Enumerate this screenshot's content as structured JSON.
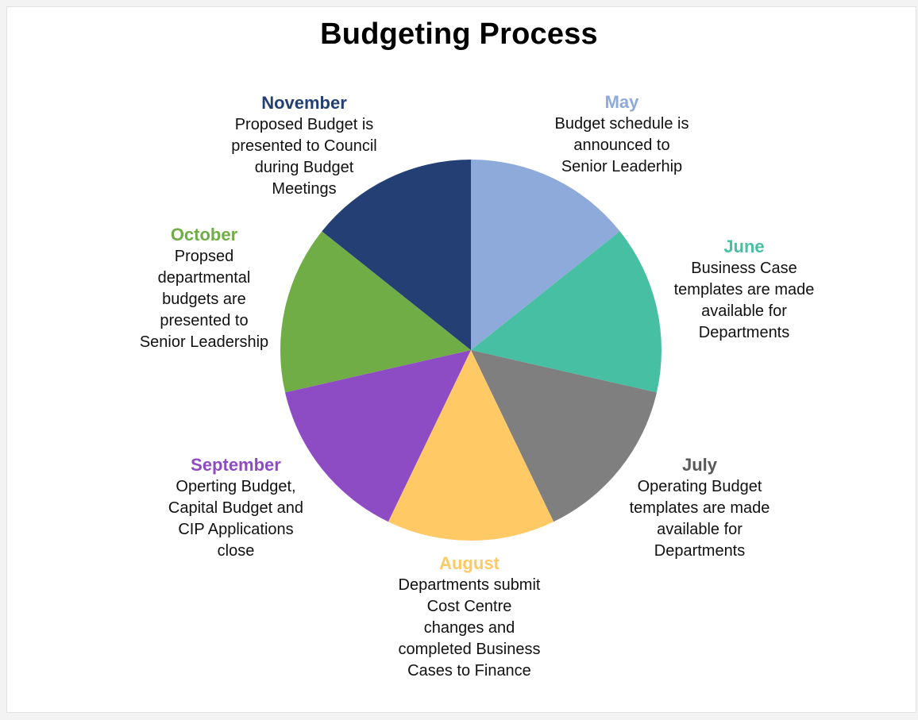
{
  "title": "Budgeting Process",
  "segments": [
    {
      "month": "May",
      "color": "#8eaadb",
      "lines": [
        "Budget schedule is",
        "announced to",
        "Senior Leaderhip"
      ]
    },
    {
      "month": "June",
      "color": "#47bfa2",
      "lines": [
        "Business Case",
        "templates  are made",
        "available  for",
        "Departments"
      ]
    },
    {
      "month": "July",
      "color": "#7f7f7f",
      "lines": [
        "Operating Budget",
        "templates  are made",
        "available  for",
        "Departments"
      ]
    },
    {
      "month": "August",
      "color": "#ffc966",
      "lines": [
        "Departments  submit",
        "Cost Centre",
        "changes and",
        "completed  Business",
        "Cases to Finance"
      ]
    },
    {
      "month": "September",
      "color": "#8e4cc4",
      "lines": [
        "Operting Budget,",
        "Capital Budget and",
        "CIP Applications",
        "close"
      ]
    },
    {
      "month": "October",
      "color": "#70ad47",
      "lines": [
        "Propsed",
        "departmental",
        "budgets are",
        "presented to",
        "Senior Leadership"
      ]
    },
    {
      "month": "November",
      "color": "#243f73",
      "lines": [
        "Proposed Budget is",
        "presented to Council",
        "during Budget",
        "Meetings"
      ]
    }
  ]
}
